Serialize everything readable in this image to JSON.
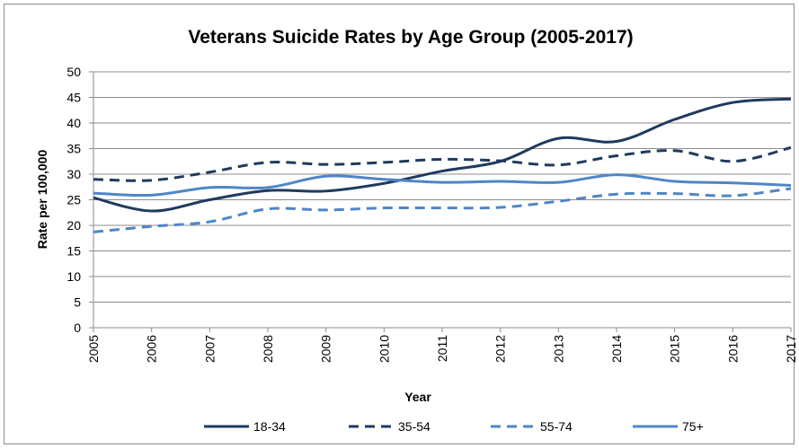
{
  "chart_data": {
    "type": "line",
    "title": "Veterans Suicide Rates  by Age Group (2005-2017)",
    "xlabel": "Year",
    "ylabel": "Rate per 100,000",
    "x": [
      2005,
      2006,
      2007,
      2008,
      2009,
      2010,
      2011,
      2012,
      2013,
      2014,
      2015,
      2016,
      2017
    ],
    "categories": [
      "2005",
      "2006",
      "2007",
      "2008",
      "2009",
      "2010",
      "2011",
      "2012",
      "2013",
      "2014",
      "2015",
      "2016",
      "2017"
    ],
    "yticks": [
      "0",
      "5",
      "10",
      "15",
      "20",
      "25",
      "30",
      "35",
      "40",
      "45",
      "50"
    ],
    "ylim": [
      0,
      50
    ],
    "grid": true,
    "legend_position": "bottom",
    "series": [
      {
        "name": "18-34",
        "color": "#1f3a5f",
        "style": "solid",
        "values": [
          25.4,
          22.8,
          25.0,
          26.8,
          26.7,
          28.2,
          30.6,
          32.5,
          37.0,
          36.4,
          40.7,
          44.0,
          44.7
        ]
      },
      {
        "name": "35-54",
        "color": "#1f3a5f",
        "style": "dashed",
        "values": [
          29.0,
          28.8,
          30.4,
          32.3,
          31.9,
          32.3,
          32.9,
          32.6,
          31.8,
          33.6,
          34.6,
          32.5,
          35.2
        ]
      },
      {
        "name": "55-74",
        "color": "#4f86c6",
        "style": "dashed",
        "values": [
          18.7,
          19.8,
          20.7,
          23.2,
          23.0,
          23.4,
          23.4,
          23.5,
          24.7,
          26.1,
          26.2,
          25.8,
          27.2
        ]
      },
      {
        "name": "75+",
        "color": "#4f86c6",
        "style": "solid",
        "values": [
          26.3,
          25.9,
          27.4,
          27.4,
          29.6,
          29.0,
          28.4,
          28.6,
          28.4,
          29.9,
          28.6,
          28.3,
          27.8
        ]
      }
    ]
  }
}
